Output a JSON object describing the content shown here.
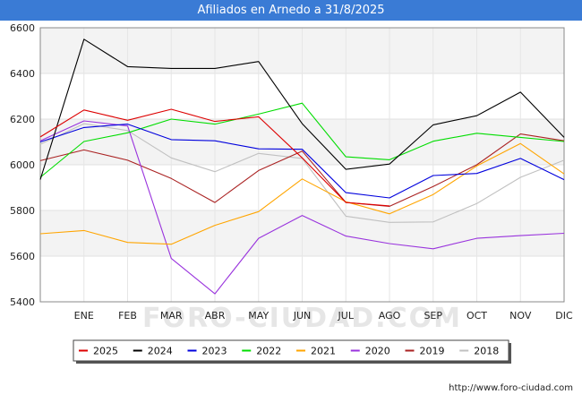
{
  "chart_data": {
    "type": "line",
    "title": "Afiliados en Arnedo a 31/8/2025",
    "categories": [
      "",
      "ENE",
      "FEB",
      "MAR",
      "ABR",
      "MAY",
      "JUN",
      "JUL",
      "AGO",
      "SEP",
      "OCT",
      "NOV",
      "DIC"
    ],
    "ylim": [
      5400,
      6600
    ],
    "yticks": [
      5400,
      5600,
      5800,
      6000,
      6200,
      6400,
      6600
    ],
    "watermark": "FORO-CIUDAD.COM",
    "series": [
      {
        "name": "2025",
        "color": "#dd0000",
        "values": [
          6122,
          6240,
          6195,
          6243,
          6190,
          6210,
          6030,
          5835,
          5820,
          null,
          null,
          null,
          null
        ]
      },
      {
        "name": "2024",
        "color": "#000000",
        "values": [
          5935,
          6550,
          6430,
          6422,
          6422,
          6452,
          6180,
          5980,
          6003,
          6175,
          6215,
          6318,
          6120
        ]
      },
      {
        "name": "2023",
        "color": "#0000dd",
        "values": [
          6100,
          6163,
          6178,
          6110,
          6105,
          6070,
          6068,
          5878,
          5855,
          5953,
          5962,
          6028,
          5935
        ]
      },
      {
        "name": "2022",
        "color": "#00dd00",
        "values": [
          5945,
          6102,
          6140,
          6200,
          6178,
          6222,
          6270,
          6035,
          6022,
          6103,
          6138,
          6120,
          6102
        ]
      },
      {
        "name": "2021",
        "color": "#ffa500",
        "values": [
          5698,
          5712,
          5660,
          5652,
          5735,
          5795,
          5938,
          5838,
          5785,
          5870,
          5995,
          6093,
          5960
        ]
      },
      {
        "name": "2020",
        "color": "#9933dd",
        "values": [
          6105,
          6192,
          6170,
          5590,
          5435,
          5678,
          5778,
          5688,
          5655,
          5632,
          5678,
          5690,
          5700
        ]
      },
      {
        "name": "2019",
        "color": "#aa2222",
        "values": [
          6018,
          6065,
          6020,
          5940,
          5835,
          5975,
          6060,
          5835,
          5818,
          5905,
          6000,
          6135,
          6105
        ]
      },
      {
        "name": "2018",
        "color": "#c0c0c0",
        "values": [
          6090,
          6180,
          6150,
          6030,
          5970,
          6050,
          6028,
          5775,
          5748,
          5750,
          5830,
          5945,
          6020
        ]
      }
    ],
    "legend_order": [
      "2025",
      "2024",
      "2023",
      "2022",
      "2021",
      "2020",
      "2019",
      "2018"
    ]
  },
  "footer": {
    "url": "http://www.foro-ciudad.com"
  }
}
